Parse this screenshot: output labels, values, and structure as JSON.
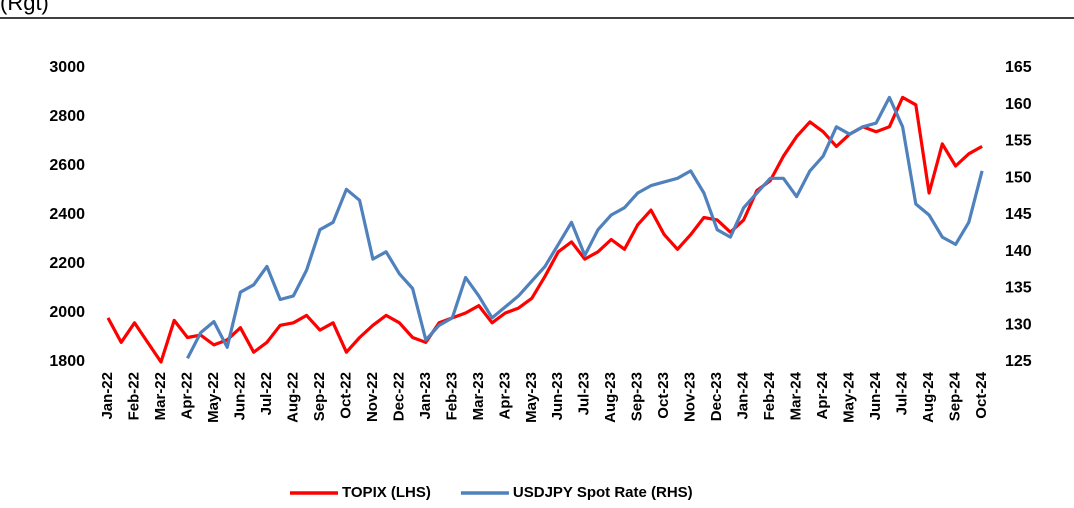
{
  "chart_data": {
    "type": "line",
    "title": "(Rgt)",
    "x": [
      0,
      0.5,
      1,
      1.5,
      2,
      2.5,
      3,
      3.5,
      4,
      4.5,
      5,
      5.5,
      6,
      6.5,
      7,
      7.5,
      8,
      8.5,
      9,
      9.5,
      10,
      10.5,
      11,
      11.5,
      12,
      12.5,
      13,
      13.5,
      14,
      14.5,
      15,
      15.5,
      16,
      16.5,
      17,
      17.5,
      18,
      18.5,
      19,
      19.5,
      20,
      20.5,
      21,
      21.5,
      22,
      22.5,
      23,
      23.5,
      24,
      24.5,
      25,
      25.5,
      26,
      26.5,
      27,
      27.5,
      28,
      28.5,
      29,
      29.5,
      30,
      30.5,
      31,
      31.5,
      32,
      32.5,
      33
    ],
    "xlim": [
      0,
      33.3
    ],
    "xticks": [
      {
        "value": 0,
        "label": "Jan-22"
      },
      {
        "value": 1,
        "label": "Feb-22"
      },
      {
        "value": 2,
        "label": "Mar-22"
      },
      {
        "value": 3,
        "label": "Apr-22"
      },
      {
        "value": 4,
        "label": "May-22"
      },
      {
        "value": 5,
        "label": "Jun-22"
      },
      {
        "value": 6,
        "label": "Jul-22"
      },
      {
        "value": 7,
        "label": "Aug-22"
      },
      {
        "value": 8,
        "label": "Sep-22"
      },
      {
        "value": 9,
        "label": "Oct-22"
      },
      {
        "value": 10,
        "label": "Nov-22"
      },
      {
        "value": 11,
        "label": "Dec-22"
      },
      {
        "value": 12,
        "label": "Jan-23"
      },
      {
        "value": 13,
        "label": "Feb-23"
      },
      {
        "value": 14,
        "label": "Mar-23"
      },
      {
        "value": 15,
        "label": "Apr-23"
      },
      {
        "value": 16,
        "label": "May-23"
      },
      {
        "value": 17,
        "label": "Jun-23"
      },
      {
        "value": 18,
        "label": "Jul-23"
      },
      {
        "value": 19,
        "label": "Aug-23"
      },
      {
        "value": 20,
        "label": "Sep-23"
      },
      {
        "value": 21,
        "label": "Oct-23"
      },
      {
        "value": 22,
        "label": "Nov-23"
      },
      {
        "value": 23,
        "label": "Dec-23"
      },
      {
        "value": 24,
        "label": "Jan-24"
      },
      {
        "value": 25,
        "label": "Feb-24"
      },
      {
        "value": 26,
        "label": "Mar-24"
      },
      {
        "value": 27,
        "label": "Apr-24"
      },
      {
        "value": 28,
        "label": "May-24"
      },
      {
        "value": 29,
        "label": "Jun-24"
      },
      {
        "value": 30,
        "label": "Jul-24"
      },
      {
        "value": 31,
        "label": "Aug-24"
      },
      {
        "value": 32,
        "label": "Sep-24"
      },
      {
        "value": 33,
        "label": "Oct-24"
      }
    ],
    "ylim": [
      1800,
      3000
    ],
    "yticks": [
      1800,
      2000,
      2200,
      2400,
      2600,
      2800,
      3000
    ],
    "y2lim": [
      125,
      165
    ],
    "y2ticks": [
      125,
      130,
      135,
      140,
      145,
      150,
      155,
      160,
      165
    ],
    "legend": "bottom",
    "series": [
      {
        "name": "TOPIX (LHS)",
        "color": "#ff0000",
        "values": [
          1980,
          1880,
          1960,
          1880,
          1800,
          1970,
          1900,
          1910,
          1870,
          1890,
          1940,
          1840,
          1880,
          1950,
          1960,
          1990,
          1930,
          1960,
          1840,
          1900,
          1950,
          1990,
          1960,
          1900,
          1880,
          1960,
          1980,
          2000,
          2030,
          1960,
          2000,
          2020,
          2060,
          2150,
          2250,
          2290,
          2220,
          2250,
          2300,
          2260,
          2360,
          2420,
          2320,
          2260,
          2320,
          2390,
          2380,
          2330,
          2380,
          2500,
          2540,
          2640,
          2720,
          2780,
          2740,
          2680,
          2730,
          2760,
          2740,
          2760,
          2880,
          2850,
          2490,
          2690,
          2600,
          2650,
          2680
        ]
      },
      {
        "name": "USDJPY Spot Rate (RHS)",
        "color": "#4f81bd",
        "axis": "y2",
        "values": [
          null,
          null,
          null,
          null,
          null,
          null,
          125.5,
          129,
          130.5,
          127,
          134.5,
          135.5,
          138,
          133.5,
          134,
          137.5,
          143,
          144,
          148.5,
          147,
          139,
          140,
          137,
          135,
          128,
          130,
          131,
          136.5,
          134,
          131,
          132.5,
          134,
          136,
          138,
          141,
          144,
          139.5,
          143,
          145,
          146,
          148,
          149,
          149.5,
          150,
          151,
          148,
          143,
          142,
          146,
          148,
          150,
          150,
          147.5,
          151,
          153,
          157,
          156,
          157,
          157.5,
          161,
          157,
          146.5,
          145,
          142,
          141,
          144,
          151
        ]
      }
    ]
  }
}
